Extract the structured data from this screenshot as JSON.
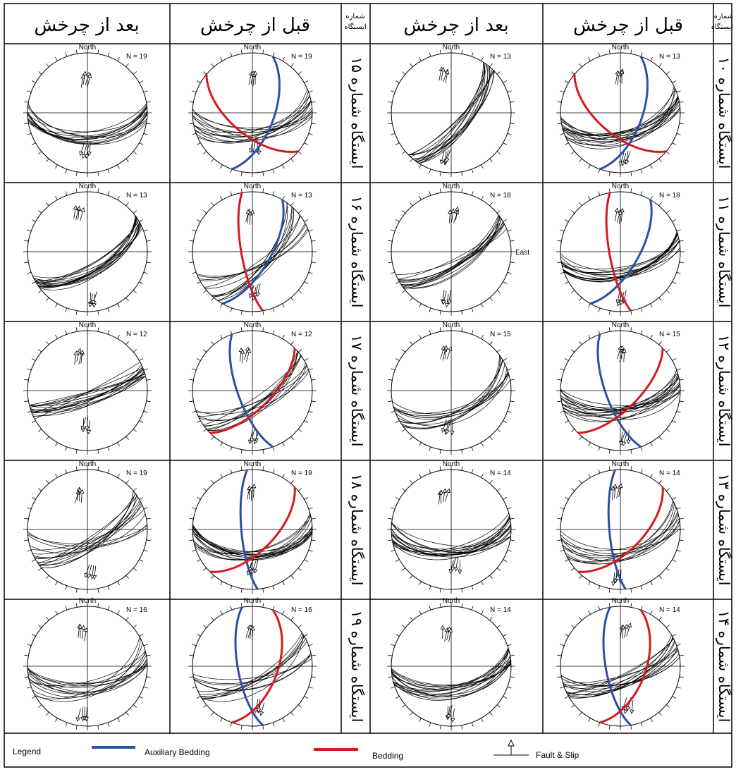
{
  "header": {
    "after_rotation": "بعد از چرخش",
    "before_rotation": "قبل از چرخش",
    "station_label_line1": "شماره",
    "station_label_line2": "ایستگاه"
  },
  "net": {
    "north_label": "North",
    "east_label": "East"
  },
  "stations": [
    {
      "right": {
        "label": "ایستگاه شماره ۱۰",
        "n": "N = 13"
      },
      "left": {
        "label": "ایستگاه شماره ۱۵",
        "n": "N = 19"
      }
    },
    {
      "right": {
        "label": "ایستگاه شماره ۱۱",
        "n": "N = 18"
      },
      "left": {
        "label": "ایستگاه شماره ۱۶",
        "n": "N = 13"
      }
    },
    {
      "right": {
        "label": "ایستگاه شماره ۱۲",
        "n": "N = 15"
      },
      "left": {
        "label": "ایستگاه شماره ۱۷",
        "n": "N = 12"
      }
    },
    {
      "right": {
        "label": "ایستگاه شماره ۱۳",
        "n": "N = 14"
      },
      "left": {
        "label": "ایستگاه شماره ۱۸",
        "n": "N = 19"
      }
    },
    {
      "right": {
        "label": "ایستگاه شماره ۱۴",
        "n": "N = 14"
      },
      "left": {
        "label": "ایستگاه شماره ۱۹",
        "n": "N = 16"
      }
    }
  ],
  "legend": {
    "title": "Legend",
    "auxiliary_bedding": "Auxiliary Bedding",
    "bedding": "Bedding",
    "fault_slip": "Fault & Slip",
    "color_auxiliary": "#2b4fa8",
    "color_bedding": "#d7191c"
  }
}
